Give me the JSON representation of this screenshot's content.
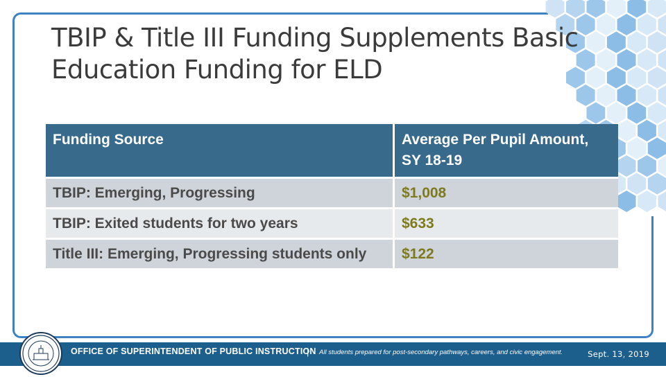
{
  "slide": {
    "title": "TBIP & Title III Funding Supplements Basic Education Funding for ELD"
  },
  "table": {
    "headers": [
      "Funding Source",
      "Average Per Pupil Amount, SY 18-19"
    ],
    "rows": [
      {
        "source": "TBIP: Emerging, Progressing",
        "amount": "$1,008"
      },
      {
        "source": "TBIP: Exited students for two years",
        "amount": "$633"
      },
      {
        "source": "Title III: Emerging, Progressing students only",
        "amount": "$122"
      }
    ]
  },
  "footer": {
    "agency": "OFFICE OF SUPERINTENDENT OF PUBLIC INSTRUCTION",
    "separator": "|",
    "tagline": "All students prepared for post-secondary pathways, careers, and civic engagement.",
    "date": "Sept. 13, 2019",
    "seal_icon": "ospi-seal-icon"
  },
  "colors": {
    "header_bg": "#386a8c",
    "row_dark": "#cfd4da",
    "row_light": "#e7eaed",
    "amount_text": "#7d7a1e",
    "footer_bg": "#1d5f8c",
    "frame_border": "#3f82c4"
  }
}
